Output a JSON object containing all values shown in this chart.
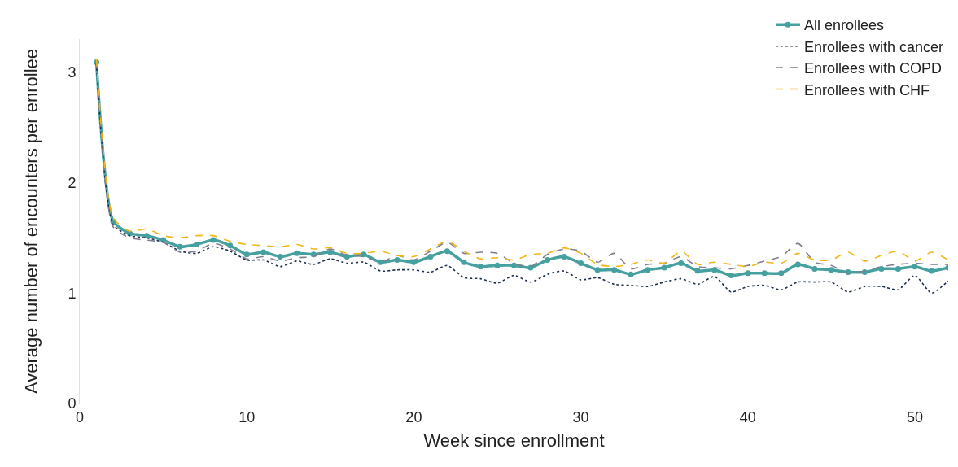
{
  "chart_data": {
    "type": "line",
    "xlabel": "Week since enrollment",
    "ylabel": "Average number of encounters per enrollee",
    "x": [
      1,
      2,
      3,
      4,
      5,
      6,
      7,
      8,
      9,
      10,
      11,
      12,
      13,
      14,
      15,
      16,
      17,
      18,
      19,
      20,
      21,
      22,
      23,
      24,
      25,
      26,
      27,
      28,
      29,
      30,
      31,
      32,
      33,
      34,
      35,
      36,
      37,
      38,
      39,
      40,
      41,
      42,
      43,
      44,
      45,
      46,
      47,
      48,
      49,
      50,
      51,
      52
    ],
    "xlim": [
      0,
      52
    ],
    "xticks": [
      0,
      10,
      20,
      30,
      40,
      50
    ],
    "ylim": [
      0,
      3.3
    ],
    "yticks": [
      0,
      1,
      2,
      3
    ],
    "grid": false,
    "legend": "top right",
    "series": [
      {
        "name": "All enrollees",
        "color": "#46a09f",
        "marker": "circle",
        "line_style": "solid",
        "values": [
          3.09,
          1.65,
          1.54,
          1.52,
          1.48,
          1.42,
          1.44,
          1.48,
          1.43,
          1.35,
          1.37,
          1.33,
          1.36,
          1.35,
          1.37,
          1.33,
          1.35,
          1.28,
          1.3,
          1.28,
          1.33,
          1.38,
          1.28,
          1.24,
          1.25,
          1.25,
          1.23,
          1.3,
          1.33,
          1.27,
          1.21,
          1.21,
          1.17,
          1.21,
          1.23,
          1.27,
          1.2,
          1.21,
          1.16,
          1.18,
          1.18,
          1.18,
          1.26,
          1.22,
          1.21,
          1.19,
          1.19,
          1.22,
          1.22,
          1.24,
          1.2,
          1.23
        ]
      },
      {
        "name": "Enrollees with cancer",
        "color": "#1c2f4f",
        "marker": "none",
        "line_style": "dotted",
        "values": [
          3.08,
          1.62,
          1.52,
          1.5,
          1.46,
          1.38,
          1.36,
          1.42,
          1.38,
          1.3,
          1.3,
          1.24,
          1.29,
          1.26,
          1.31,
          1.27,
          1.28,
          1.2,
          1.21,
          1.21,
          1.19,
          1.25,
          1.14,
          1.13,
          1.09,
          1.16,
          1.1,
          1.17,
          1.2,
          1.12,
          1.14,
          1.08,
          1.07,
          1.06,
          1.1,
          1.13,
          1.08,
          1.15,
          1.01,
          1.06,
          1.07,
          1.03,
          1.1,
          1.1,
          1.1,
          1.01,
          1.06,
          1.06,
          1.03,
          1.16,
          1.0,
          1.11
        ]
      },
      {
        "name": "Enrollees with COPD",
        "color": "#7f7f8f",
        "marker": "none",
        "line_style": "dashed",
        "values": [
          3.1,
          1.6,
          1.5,
          1.48,
          1.46,
          1.37,
          1.38,
          1.45,
          1.4,
          1.31,
          1.33,
          1.29,
          1.32,
          1.33,
          1.4,
          1.34,
          1.33,
          1.28,
          1.34,
          1.3,
          1.38,
          1.46,
          1.36,
          1.37,
          1.36,
          1.27,
          1.24,
          1.35,
          1.4,
          1.38,
          1.28,
          1.36,
          1.22,
          1.26,
          1.27,
          1.33,
          1.24,
          1.23,
          1.22,
          1.25,
          1.29,
          1.33,
          1.45,
          1.28,
          1.25,
          1.18,
          1.2,
          1.24,
          1.26,
          1.27,
          1.26,
          1.26
        ]
      },
      {
        "name": "Enrollees with CHF",
        "color": "#f2b51b",
        "marker": "none",
        "line_style": "dashed",
        "values": [
          3.12,
          1.68,
          1.56,
          1.58,
          1.52,
          1.5,
          1.52,
          1.52,
          1.47,
          1.44,
          1.43,
          1.42,
          1.44,
          1.4,
          1.41,
          1.36,
          1.36,
          1.38,
          1.34,
          1.33,
          1.4,
          1.47,
          1.38,
          1.31,
          1.32,
          1.3,
          1.35,
          1.36,
          1.41,
          1.36,
          1.26,
          1.24,
          1.26,
          1.3,
          1.27,
          1.38,
          1.26,
          1.28,
          1.26,
          1.24,
          1.28,
          1.27,
          1.36,
          1.3,
          1.3,
          1.37,
          1.29,
          1.34,
          1.38,
          1.29,
          1.37,
          1.3
        ]
      }
    ]
  }
}
